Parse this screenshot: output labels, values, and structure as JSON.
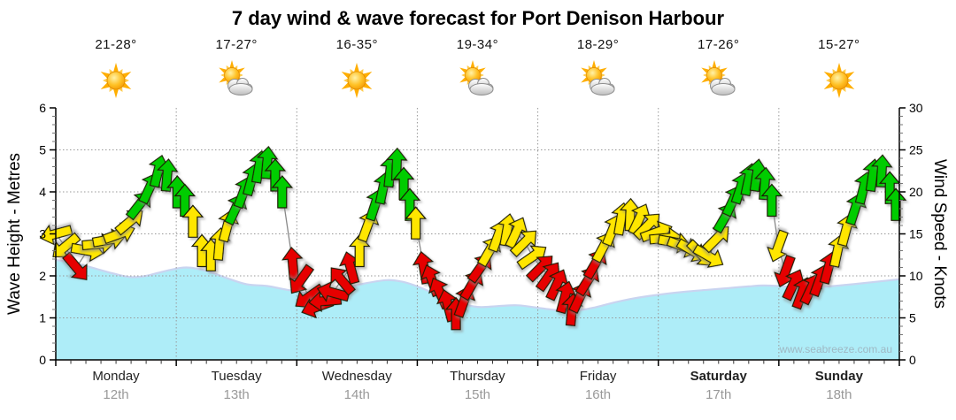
{
  "title": "7 day wind & wave forecast for Port Denison Harbour",
  "watermark": "www.seabreeze.com.au",
  "days": [
    {
      "name": "Monday",
      "date": "12th",
      "temp": "21-28°",
      "icon": "sunny",
      "bold": false
    },
    {
      "name": "Tuesday",
      "date": "13th",
      "temp": "17-27°",
      "icon": "partly-cloudy",
      "bold": false
    },
    {
      "name": "Wednesday",
      "date": "14th",
      "temp": "16-35°",
      "icon": "sunny",
      "bold": false
    },
    {
      "name": "Thursday",
      "date": "15th",
      "temp": "19-34°",
      "icon": "partly-cloudy",
      "bold": false
    },
    {
      "name": "Friday",
      "date": "16th",
      "temp": "18-29°",
      "icon": "partly-cloudy",
      "bold": false
    },
    {
      "name": "Saturday",
      "date": "17th",
      "temp": "17-26°",
      "icon": "partly-cloudy",
      "bold": true
    },
    {
      "name": "Sunday",
      "date": "18th",
      "temp": "15-27°",
      "icon": "sunny",
      "bold": true
    }
  ],
  "left_axis": {
    "label": "Wave Height - Metres",
    "ticks": [
      0,
      1,
      2,
      3,
      4,
      5,
      6
    ],
    "max": 6
  },
  "right_axis": {
    "label": "Wind Speed - Knots",
    "ticks": [
      0,
      5,
      10,
      15,
      20,
      25,
      30
    ],
    "max": 30
  },
  "colors": {
    "wave_fill": "#AEEDF8",
    "wave_edge": "#C9D4F0",
    "arrow_red": "#E60000",
    "arrow_yellow": "#FFE600",
    "arrow_green": "#00CC00",
    "arrow_outline": "#1a1a00",
    "grid": "#999999",
    "axis": "#000000",
    "wind_line": "#888888",
    "day_text": "#222222",
    "date_text": "#999999",
    "watermark_text": "#9FB9C4"
  },
  "chart_data": {
    "type": "area+wind-arrows",
    "x_hours_range": [
      0,
      168
    ],
    "wave_ylim_m": [
      0,
      6
    ],
    "wind_ylim_kn": [
      0,
      30
    ],
    "wave_height_m": [
      [
        0,
        2.38
      ],
      [
        4,
        2.3
      ],
      [
        8,
        2.17
      ],
      [
        12,
        2.04
      ],
      [
        15,
        1.97
      ],
      [
        18,
        2.0
      ],
      [
        22,
        2.12
      ],
      [
        26,
        2.2
      ],
      [
        30,
        2.12
      ],
      [
        34,
        1.95
      ],
      [
        38,
        1.8
      ],
      [
        42,
        1.76
      ],
      [
        46,
        1.67
      ],
      [
        50,
        1.6
      ],
      [
        54,
        1.62
      ],
      [
        58,
        1.72
      ],
      [
        62,
        1.83
      ],
      [
        66,
        1.9
      ],
      [
        69,
        1.86
      ],
      [
        72,
        1.75
      ],
      [
        76,
        1.55
      ],
      [
        80,
        1.37
      ],
      [
        84,
        1.26
      ],
      [
        88,
        1.28
      ],
      [
        92,
        1.3
      ],
      [
        96,
        1.24
      ],
      [
        100,
        1.18
      ],
      [
        103,
        1.16
      ],
      [
        107,
        1.24
      ],
      [
        111,
        1.36
      ],
      [
        115,
        1.46
      ],
      [
        120,
        1.55
      ],
      [
        125,
        1.62
      ],
      [
        130,
        1.67
      ],
      [
        134,
        1.71
      ],
      [
        138,
        1.75
      ],
      [
        141,
        1.77
      ],
      [
        145,
        1.75
      ],
      [
        149,
        1.72
      ],
      [
        153,
        1.74
      ],
      [
        157,
        1.78
      ],
      [
        161,
        1.83
      ],
      [
        165,
        1.88
      ],
      [
        168,
        1.92
      ]
    ],
    "wind_arrows": [
      [
        0,
        15,
        255,
        "Y"
      ],
      [
        1.9,
        13.5,
        230,
        "Y"
      ],
      [
        4.1,
        11,
        140,
        "R"
      ],
      [
        6.3,
        13,
        100,
        "Y"
      ],
      [
        8.5,
        13.8,
        85,
        "Y"
      ],
      [
        10.6,
        14.3,
        80,
        "Y"
      ],
      [
        12.7,
        15,
        70,
        "Y"
      ],
      [
        14.8,
        16.5,
        50,
        "Y"
      ],
      [
        16.7,
        18.5,
        38,
        "G"
      ],
      [
        18.7,
        20.5,
        25,
        "G"
      ],
      [
        20.4,
        22.5,
        14,
        "G"
      ],
      [
        22.2,
        22,
        5,
        "G"
      ],
      [
        24.2,
        20,
        0,
        "G"
      ],
      [
        25.7,
        19,
        0,
        "G"
      ],
      [
        27.3,
        16.5,
        0,
        "Y"
      ],
      [
        29.1,
        13,
        0,
        "Y"
      ],
      [
        30.9,
        12.5,
        0,
        "Y"
      ],
      [
        32.6,
        13.8,
        5,
        "Y"
      ],
      [
        34.2,
        16,
        15,
        "Y"
      ],
      [
        35.8,
        18,
        25,
        "G"
      ],
      [
        37.4,
        20,
        20,
        "G"
      ],
      [
        39,
        21.5,
        15,
        "G"
      ],
      [
        40.5,
        23,
        10,
        "G"
      ],
      [
        42.1,
        23.5,
        5,
        "G"
      ],
      [
        43.7,
        22,
        0,
        "G"
      ],
      [
        45.1,
        20,
        0,
        "G"
      ],
      [
        47.2,
        11.5,
        355,
        "R"
      ],
      [
        48.8,
        9.5,
        215,
        "R"
      ],
      [
        50.4,
        7.5,
        235,
        "R"
      ],
      [
        52,
        6.3,
        250,
        "R"
      ],
      [
        53.6,
        7,
        265,
        "R"
      ],
      [
        55.2,
        8,
        285,
        "R"
      ],
      [
        56.9,
        9.5,
        320,
        "R"
      ],
      [
        58.7,
        11,
        345,
        "R"
      ],
      [
        60.5,
        13,
        0,
        "Y"
      ],
      [
        62.1,
        16,
        20,
        "Y"
      ],
      [
        63.6,
        18.5,
        18,
        "G"
      ],
      [
        65.2,
        20.5,
        12,
        "G"
      ],
      [
        66.6,
        22.5,
        6,
        "G"
      ],
      [
        67.9,
        23.3,
        2,
        "G"
      ],
      [
        69.3,
        21,
        0,
        "G"
      ],
      [
        70.5,
        18.5,
        0,
        "G"
      ],
      [
        71.7,
        16.3,
        0,
        "Y"
      ],
      [
        73.3,
        11,
        350,
        "R"
      ],
      [
        74.9,
        9.5,
        340,
        "R"
      ],
      [
        76.5,
        8,
        335,
        "R"
      ],
      [
        78.1,
        6.5,
        345,
        "R"
      ],
      [
        79.7,
        5.5,
        0,
        "R"
      ],
      [
        81.3,
        7,
        20,
        "R"
      ],
      [
        82.9,
        9,
        30,
        "R"
      ],
      [
        84.6,
        11,
        35,
        "R"
      ],
      [
        86.4,
        13,
        30,
        "Y"
      ],
      [
        88.1,
        14.8,
        20,
        "Y"
      ],
      [
        89.9,
        15.5,
        10,
        "Y"
      ],
      [
        91.7,
        15.2,
        25,
        "Y"
      ],
      [
        93.4,
        14,
        45,
        "Y"
      ],
      [
        95,
        12.3,
        55,
        "Y"
      ],
      [
        96.6,
        11,
        45,
        "R"
      ],
      [
        98.2,
        10,
        35,
        "R"
      ],
      [
        99.8,
        9,
        25,
        "R"
      ],
      [
        101.4,
        7.5,
        15,
        "R"
      ],
      [
        102.8,
        6,
        5,
        "R"
      ],
      [
        104.4,
        7.5,
        25,
        "R"
      ],
      [
        106,
        9.5,
        32,
        "R"
      ],
      [
        107.5,
        11.5,
        30,
        "R"
      ],
      [
        109.1,
        13.5,
        28,
        "Y"
      ],
      [
        110.9,
        15.5,
        22,
        "Y"
      ],
      [
        112.6,
        16.8,
        10,
        "Y"
      ],
      [
        114.4,
        17.3,
        2,
        "Y"
      ],
      [
        116.2,
        16.8,
        25,
        "Y"
      ],
      [
        117.9,
        16,
        45,
        "Y"
      ],
      [
        119.7,
        15.2,
        70,
        "Y"
      ],
      [
        121.5,
        14.5,
        85,
        "Y"
      ],
      [
        123.2,
        14,
        100,
        "Y"
      ],
      [
        125,
        13.5,
        110,
        "Y"
      ],
      [
        126.8,
        13,
        120,
        "Y"
      ],
      [
        128.5,
        12.6,
        135,
        "Y"
      ],
      [
        130.1,
        12.3,
        120,
        "Y"
      ],
      [
        131.7,
        14.5,
        45,
        "Y"
      ],
      [
        133.3,
        17,
        30,
        "G"
      ],
      [
        134.9,
        19,
        25,
        "G"
      ],
      [
        136.4,
        20.5,
        18,
        "G"
      ],
      [
        138,
        21.5,
        12,
        "G"
      ],
      [
        139.6,
        22,
        8,
        "G"
      ],
      [
        141.2,
        21,
        4,
        "G"
      ],
      [
        142.6,
        19,
        0,
        "G"
      ],
      [
        143.9,
        13.5,
        200,
        "Y"
      ],
      [
        145.3,
        10.5,
        200,
        "R"
      ],
      [
        146.9,
        9,
        25,
        "R"
      ],
      [
        148.6,
        8,
        20,
        "R"
      ],
      [
        150.4,
        8.5,
        25,
        "R"
      ],
      [
        152.1,
        9.5,
        20,
        "R"
      ],
      [
        153.9,
        11,
        15,
        "R"
      ],
      [
        155.7,
        13,
        12,
        "Y"
      ],
      [
        157.4,
        15.5,
        15,
        "Y"
      ],
      [
        159.2,
        18,
        18,
        "G"
      ],
      [
        160.9,
        20.5,
        14,
        "G"
      ],
      [
        162.7,
        22,
        8,
        "G"
      ],
      [
        164.5,
        22.5,
        3,
        "G"
      ],
      [
        166.1,
        20.5,
        0,
        "G"
      ],
      [
        167.3,
        18.5,
        0,
        "G"
      ]
    ]
  }
}
